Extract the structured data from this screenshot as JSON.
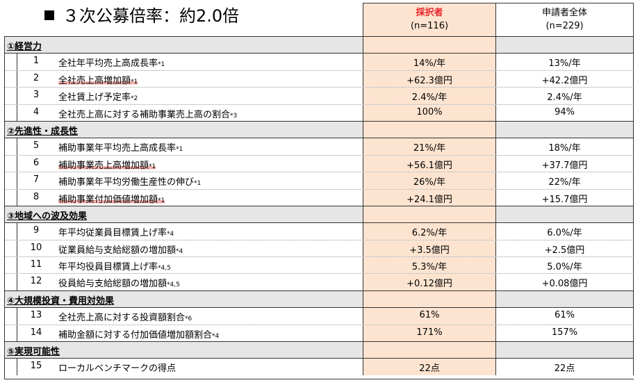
{
  "title": "３次公募倍率：約2.0倍",
  "columns": {
    "selected_label": "採択者",
    "selected_n": "(n=116)",
    "all_label": "申請者全体",
    "all_n": "(n=229)"
  },
  "sections": [
    {
      "label": "①経営力",
      "items": [
        {
          "num": "1",
          "text": "全社年平均売上高成長率",
          "note": "*1",
          "v1": "14%/年",
          "v2": "13%/年",
          "hl": false
        },
        {
          "num": "2",
          "text": "全社売上高増加額",
          "note": "*1",
          "v1": "+62.3億円",
          "v2": "+42.2億円",
          "hl": true
        },
        {
          "num": "3",
          "text": "全社賃上げ予定率",
          "note": "*2",
          "v1": "2.4%/年",
          "v2": "2.4%/年",
          "hl": false
        },
        {
          "num": "4",
          "text": "全社売上高に対する補助事業売上高の割合",
          "note": "*3",
          "v1": "100%",
          "v2": "94%",
          "hl": false
        }
      ]
    },
    {
      "label": "②先進性・成長性",
      "items": [
        {
          "num": "5",
          "text": "補助事業年平均売上高成長率",
          "note": "*1",
          "v1": "21%/年",
          "v2": "18%/年",
          "hl": false
        },
        {
          "num": "6",
          "text": "補助事業売上高増加額",
          "note": "*1",
          "v1": "+56.1億円",
          "v2": "+37.7億円",
          "hl": true
        },
        {
          "num": "7",
          "text": "補助事業年平均労働生産性の伸び",
          "note": "*1",
          "v1": "26%/年",
          "v2": "22%/年",
          "hl": false
        },
        {
          "num": "8",
          "text": "補助事業付加価値増加額",
          "note": "*1",
          "v1": "+24.1億円",
          "v2": "+15.7億円",
          "hl": true
        }
      ]
    },
    {
      "label": "③地域への波及効果",
      "items": [
        {
          "num": "9",
          "text": "年平均従業員目標賃上げ率",
          "note": "*4",
          "v1": "6.2%/年",
          "v2": "6.0%/年",
          "hl": false
        },
        {
          "num": "10",
          "text": "従業員給与支給総額の増加額",
          "note": "*4",
          "v1": "+3.5億円",
          "v2": "+2.5億円",
          "hl": false
        },
        {
          "num": "11",
          "text": "年平均役員目標賃上げ率",
          "note": "*4,5",
          "v1": "5.3%/年",
          "v2": "5.0%/年",
          "hl": false
        },
        {
          "num": "12",
          "text": "役員給与支給総額の増加額",
          "note": "*4,5",
          "v1": "+0.12億円",
          "v2": "+0.08億円",
          "hl": false
        }
      ]
    },
    {
      "label": "④大規模投資・費用対効果",
      "items": [
        {
          "num": "13",
          "text": "全社売上高に対する投資額割合",
          "note": "*6",
          "v1": "61%",
          "v2": "61%",
          "hl": false
        },
        {
          "num": "14",
          "text": "補助金額に対する付加価値増加額割合",
          "note": "*4",
          "v1": "171%",
          "v2": "157%",
          "hl": false
        }
      ]
    },
    {
      "label": "⑤実現可能性",
      "items": [
        {
          "num": "15",
          "text": "ローカルベンチマークの得点",
          "note": "",
          "v1": "22点",
          "v2": "22点",
          "hl": false
        }
      ]
    }
  ]
}
